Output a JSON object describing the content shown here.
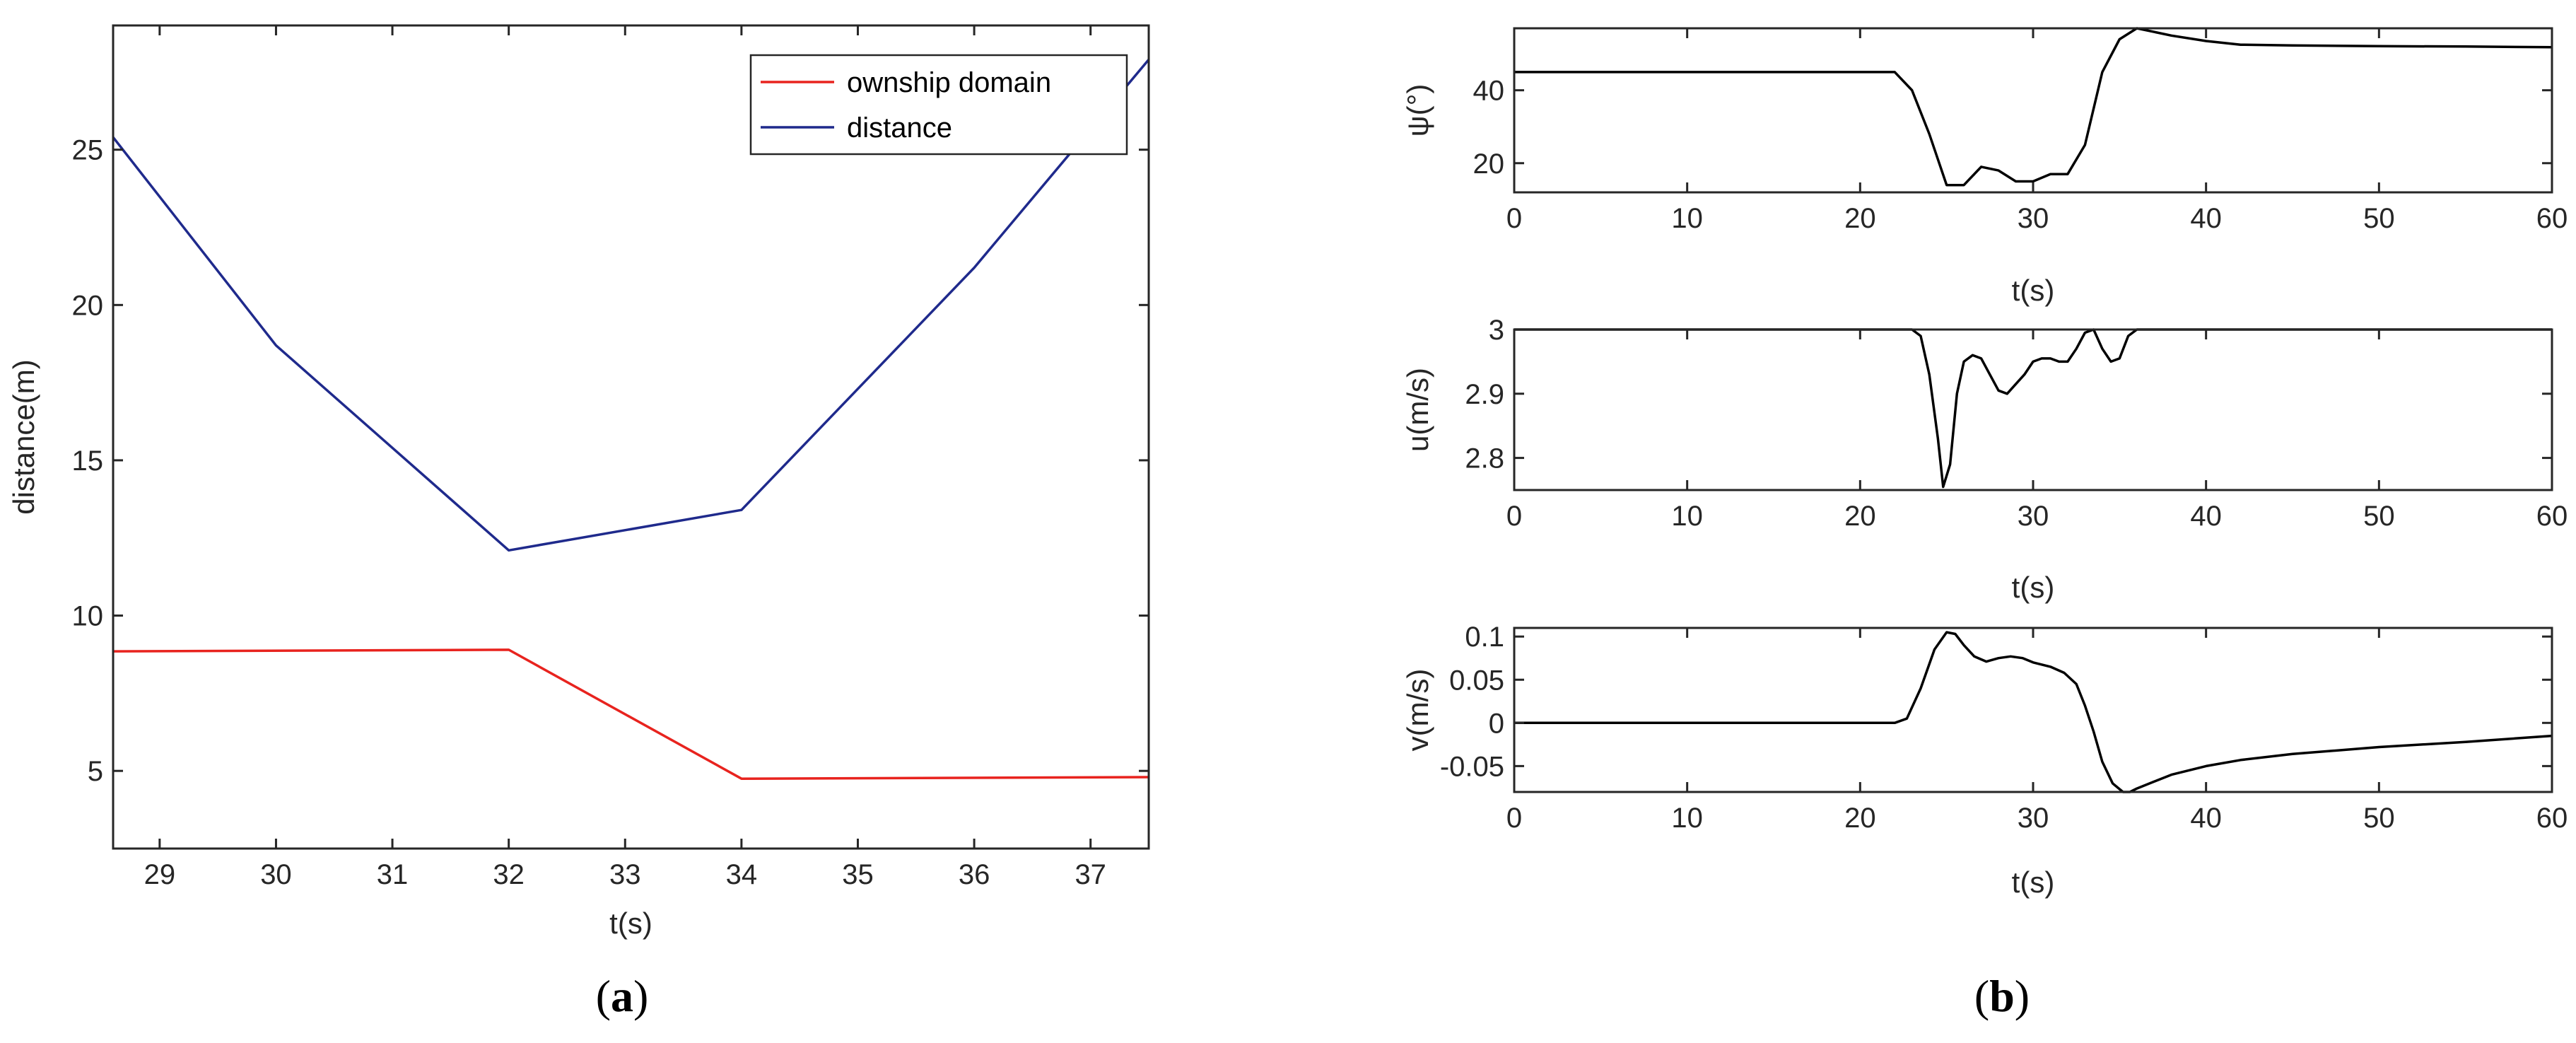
{
  "chart_data": [
    {
      "panel": "a",
      "type": "line",
      "xlabel": "t(s)",
      "ylabel": "distance(m)",
      "xlim": [
        28.6,
        37.5
      ],
      "ylim": [
        2.5,
        29.0
      ],
      "xticks": [
        29,
        30,
        31,
        32,
        33,
        34,
        35,
        36,
        37
      ],
      "yticks": [
        5,
        10,
        15,
        20,
        25
      ],
      "legend_position": "top-right",
      "series": [
        {
          "name": "ownship domain",
          "color": "#e8231e",
          "x": [
            28.6,
            32,
            34,
            37.5
          ],
          "y": [
            8.85,
            8.9,
            4.75,
            4.8
          ]
        },
        {
          "name": "distance",
          "color": "#1f2a8c",
          "x": [
            28.6,
            30,
            32,
            34,
            36,
            37.5
          ],
          "y": [
            25.4,
            18.7,
            12.1,
            13.4,
            21.2,
            27.9
          ]
        }
      ],
      "caption_letter": "a"
    },
    {
      "panel": "b1",
      "type": "line",
      "xlabel": "t(s)",
      "ylabel": "ψ(°)",
      "xlim": [
        0,
        60
      ],
      "ylim": [
        12,
        57
      ],
      "xticks": [
        0,
        10,
        20,
        30,
        40,
        50,
        60
      ],
      "yticks": [
        20,
        40
      ],
      "series": [
        {
          "color": "#000000",
          "x": [
            0,
            22,
            23,
            24,
            25,
            26,
            27,
            28,
            29,
            30,
            31,
            32,
            33,
            34,
            35,
            36,
            38,
            40,
            42,
            45,
            50,
            55,
            60
          ],
          "y": [
            45,
            45,
            40,
            28,
            14,
            14,
            19,
            18,
            15,
            15,
            17,
            17,
            25,
            45,
            54,
            57,
            55,
            53.5,
            52.5,
            52.3,
            52.1,
            52,
            51.8
          ]
        }
      ],
      "caption_letter": "b"
    },
    {
      "panel": "b2",
      "type": "line",
      "xlabel": "t(s)",
      "ylabel": "u(m/s)",
      "xlim": [
        0,
        60
      ],
      "ylim": [
        2.75,
        3.0
      ],
      "xticks": [
        0,
        10,
        20,
        30,
        40,
        50,
        60
      ],
      "yticks": [
        2.8,
        2.9,
        3
      ],
      "ytick_labels": [
        "2.8",
        "2.9",
        "3"
      ],
      "series": [
        {
          "color": "#000000",
          "x": [
            0,
            23,
            23.5,
            24,
            24.5,
            24.8,
            25.2,
            25.6,
            26,
            26.5,
            27,
            27.5,
            28,
            28.5,
            29,
            29.5,
            30,
            30.5,
            31,
            31.5,
            32,
            32.5,
            33,
            33.5,
            34,
            34.5,
            35,
            35.5,
            36,
            38,
            60
          ],
          "y": [
            3.0,
            3.0,
            2.99,
            2.93,
            2.83,
            2.755,
            2.79,
            2.9,
            2.95,
            2.96,
            2.955,
            2.93,
            2.905,
            2.9,
            2.915,
            2.93,
            2.95,
            2.955,
            2.955,
            2.95,
            2.95,
            2.97,
            2.995,
            3.0,
            2.97,
            2.95,
            2.955,
            2.99,
            3.0,
            3.0,
            3.0
          ]
        }
      ]
    },
    {
      "panel": "b3",
      "type": "line",
      "xlabel": "t(s)",
      "ylabel": "v(m/s)",
      "xlim": [
        0,
        60
      ],
      "ylim": [
        -0.08,
        0.11
      ],
      "xticks": [
        0,
        10,
        20,
        30,
        40,
        50,
        60
      ],
      "yticks": [
        -0.05,
        0,
        0.05,
        0.1
      ],
      "ytick_labels": [
        "-0.05",
        "0",
        "0.05",
        "0.1"
      ],
      "series": [
        {
          "color": "#000000",
          "x": [
            0,
            22,
            22.7,
            23.5,
            24.3,
            25,
            25.5,
            26,
            26.6,
            27.3,
            28,
            28.7,
            29.4,
            30,
            31,
            31.8,
            32.5,
            33,
            33.5,
            34,
            34.6,
            35.2,
            35.6,
            36,
            37,
            38,
            40,
            42,
            45,
            50,
            55,
            60
          ],
          "y": [
            0,
            0,
            0.005,
            0.04,
            0.085,
            0.105,
            0.103,
            0.09,
            0.077,
            0.071,
            0.075,
            0.077,
            0.075,
            0.07,
            0.065,
            0.058,
            0.045,
            0.02,
            -0.01,
            -0.045,
            -0.07,
            -0.08,
            -0.08,
            -0.076,
            -0.068,
            -0.06,
            -0.05,
            -0.043,
            -0.036,
            -0.028,
            -0.022,
            -0.015
          ]
        }
      ]
    }
  ]
}
